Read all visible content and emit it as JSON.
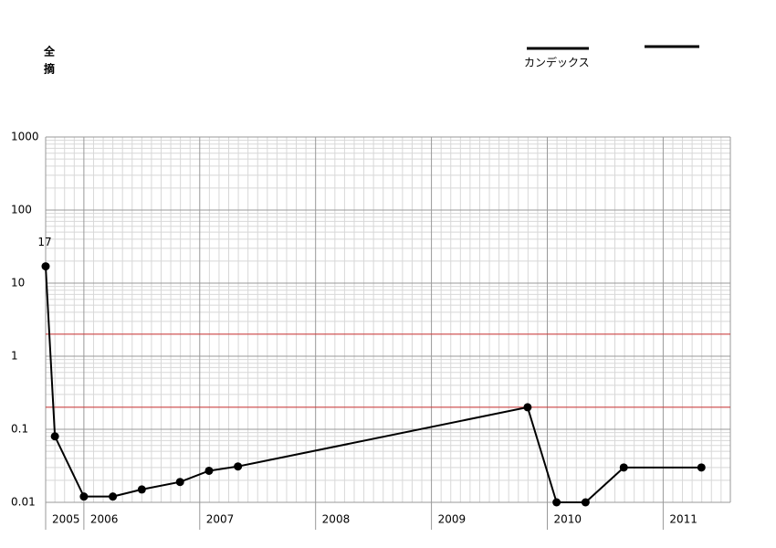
{
  "chart_data": {
    "type": "line",
    "title_lines": [
      "全",
      "摘"
    ],
    "x": [
      2005.67,
      2005.75,
      2006.0,
      2006.25,
      2006.5,
      2006.83,
      2007.08,
      2007.33,
      2009.83,
      2010.08,
      2010.33,
      2010.66,
      2011.33
    ],
    "series": [
      {
        "name": "カンデックス",
        "color": "#000000",
        "values": [
          17,
          0.08,
          0.012,
          0.012,
          0.015,
          0.019,
          0.027,
          0.031,
          0.2,
          0.01,
          0.01,
          0.03,
          0.03
        ]
      }
    ],
    "ylim": [
      0.01,
      1000
    ],
    "yticks": [
      0.01,
      0.1,
      1,
      10,
      100,
      1000
    ],
    "log_y": true,
    "xlim": [
      2005.67,
      2011.58
    ],
    "xticks": [
      2005,
      2006,
      2007,
      2008,
      2009,
      2010,
      2011
    ],
    "reference_lines": [
      2,
      0.2
    ],
    "reference_color": "#cc3333",
    "grid": true
  }
}
